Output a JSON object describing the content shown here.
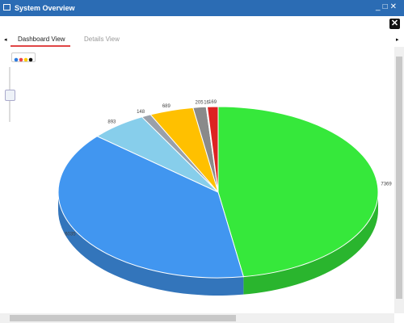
{
  "window": {
    "title": "System Overview"
  },
  "tabs": [
    "Dashboard View",
    "Details View"
  ],
  "chart_data": {
    "type": "pie",
    "values": [
      7369,
      6035,
      893,
      148,
      689,
      205,
      16,
      169
    ],
    "colors": [
      "#36e83b",
      "#4196f0",
      "#87ceeb",
      "#9aa0aa",
      "#ffc000",
      "#8a8a8a",
      "#d0d0d0",
      "#dd2222"
    ]
  }
}
